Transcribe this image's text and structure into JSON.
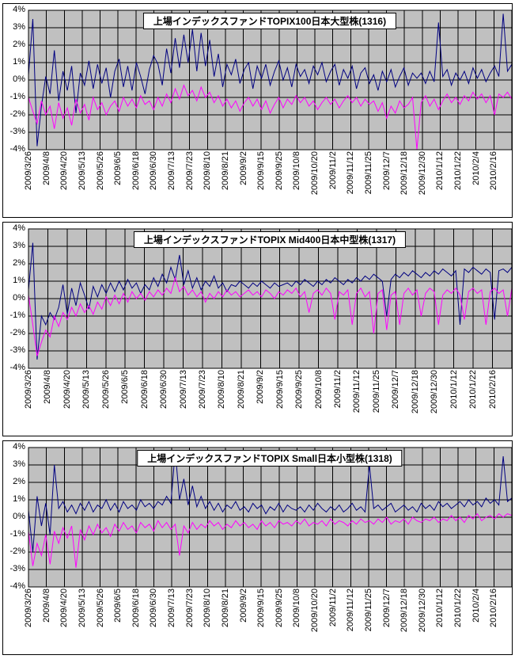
{
  "colors": {
    "plot_bg": "#c0c0c0",
    "grid": "#000000",
    "navy": "#000080",
    "magenta": "#ff00ff"
  },
  "axis": {
    "y_ticks": [
      "4%",
      "3%",
      "2%",
      "1%",
      "0%",
      "-1%",
      "-2%",
      "-3%",
      "-4%"
    ]
  },
  "chart_data": [
    {
      "type": "line",
      "title": "上場インデックスファンドTOPIX100日本大型株(1316)",
      "ylim": [
        -4,
        4
      ],
      "y_unit": "%",
      "grid": true,
      "legend": "none",
      "x_labels": [
        "2009/3/26",
        "2009/4/8",
        "2009/4/20",
        "2009/5/13",
        "2009/5/26",
        "2009/6/5",
        "2009/6/18",
        "2009/6/30",
        "2009/7/13",
        "2009/7/23",
        "2009/8/10",
        "2009/8/21",
        "2009/9/2",
        "2009/9/15",
        "2009/9/25",
        "2009/10/8",
        "2009/10/20",
        "2009/11/2",
        "2009/11/12",
        "2009/11/25",
        "2009/12/7",
        "2009/12/18",
        "2009/12/30",
        "2010/1/12",
        "2010/1/22",
        "2010/2/4",
        "2010/2/16"
      ],
      "series": [
        {
          "name": "navy-series",
          "color": "#000080",
          "values": [
            0.3,
            3.5,
            -3.8,
            -1.5,
            0.2,
            -0.8,
            1.7,
            -1.2,
            0.5,
            -0.6,
            0.8,
            -1.9,
            0.4,
            -0.3,
            1.1,
            -0.5,
            0.9,
            -0.2,
            0.7,
            -1.0,
            0.5,
            1.2,
            -0.4,
            0.8,
            -0.6,
            1.0,
            0.2,
            -0.8,
            0.6,
            1.4,
            0.9,
            -0.3,
            1.8,
            0.4,
            2.4,
            0.7,
            2.6,
            1.0,
            2.9,
            0.5,
            2.7,
            0.8,
            2.3,
            0.2,
            1.5,
            -0.4,
            0.9,
            0.3,
            1.2,
            -0.2,
            0.6,
            1.0,
            -0.5,
            0.8,
            0.1,
            0.9,
            -0.3,
            0.5,
            1.1,
            0.0,
            0.7,
            -0.4,
            0.9,
            0.2,
            0.6,
            -0.2,
            0.8,
            0.3,
            1.0,
            -0.1,
            0.5,
            0.9,
            -0.3,
            0.6,
            0.1,
            0.8,
            -0.5,
            0.4,
            0.7,
            -0.2,
            0.3,
            -0.6,
            0.5,
            -0.1,
            0.6,
            -0.4,
            0.2,
            0.7,
            -0.3,
            0.4,
            0.1,
            0.4,
            -0.2,
            0.5,
            -0.1,
            3.3,
            0.2,
            0.6,
            -0.3,
            0.4,
            0.0,
            0.5,
            -0.2,
            0.7,
            0.1,
            0.6,
            -0.1,
            0.4,
            0.8,
            0.2,
            3.8,
            0.5,
            0.9
          ]
        },
        {
          "name": "magenta-series",
          "color": "#ff00ff",
          "values": [
            -1.0,
            -1.8,
            -2.5,
            -1.2,
            -2.0,
            -1.5,
            -2.8,
            -1.3,
            -2.2,
            -1.6,
            -2.6,
            -1.1,
            -1.9,
            -1.4,
            -2.3,
            -1.0,
            -1.7,
            -1.3,
            -2.0,
            -1.5,
            -1.2,
            -1.8,
            -1.0,
            -1.5,
            -1.1,
            -1.6,
            -0.9,
            -1.4,
            -1.2,
            -1.7,
            -1.0,
            -1.5,
            -0.8,
            -1.3,
            -0.5,
            -1.1,
            -0.3,
            -0.9,
            -0.6,
            -1.2,
            -0.4,
            -1.0,
            -0.7,
            -1.3,
            -0.9,
            -1.5,
            -1.1,
            -1.6,
            -1.2,
            -1.8,
            -1.3,
            -1.0,
            -1.5,
            -1.1,
            -1.7,
            -1.2,
            -1.9,
            -1.4,
            -1.0,
            -1.6,
            -1.1,
            -1.4,
            -0.9,
            -1.3,
            -1.0,
            -1.5,
            -1.2,
            -1.7,
            -1.3,
            -1.0,
            -1.4,
            -1.1,
            -1.6,
            -1.2,
            -0.9,
            -1.3,
            -1.0,
            -1.5,
            -1.1,
            -1.4,
            -1.2,
            -1.8,
            -1.3,
            -2.2,
            -1.5,
            -1.9,
            -1.2,
            -1.6,
            -1.4,
            -1.0,
            -4.0,
            -1.3,
            -0.9,
            -1.5,
            -1.1,
            -1.7,
            -1.2,
            -0.8,
            -1.3,
            -1.0,
            -1.4,
            -0.9,
            -1.2,
            -0.7,
            -1.1,
            -0.8,
            -1.3,
            -0.9,
            -2.0,
            -0.8,
            -1.0,
            -0.7,
            -1.1
          ]
        }
      ]
    },
    {
      "type": "line",
      "title": "上場インデックスファンドTOPIX Mid400日本中型株(1317)",
      "ylim": [
        -4,
        4
      ],
      "y_unit": "%",
      "grid": true,
      "legend": "none",
      "x_labels": [
        "2009/3/26",
        "2009/4/8",
        "2009/4/20",
        "2009/5/13",
        "2009/5/26",
        "2009/6/5",
        "2009/6/18",
        "2009/6/30",
        "2009/7/13",
        "2009/7/23",
        "2009/8/10",
        "2009/8/21",
        "2009/9/2",
        "2009/9/15",
        "2009/9/25",
        "2009/10/8",
        "2009/11/2",
        "2009/11/12",
        "2009/11/25",
        "2009/12/7",
        "2009/12/18",
        "2009/12/30",
        "2010/1/12",
        "2010/1/22",
        "2010/2/16"
      ],
      "series": [
        {
          "name": "navy-series",
          "color": "#000080",
          "values": [
            0.5,
            3.2,
            -3.5,
            -1.0,
            -1.5,
            -0.8,
            -1.2,
            -0.5,
            0.8,
            -0.9,
            0.6,
            -0.4,
            0.9,
            0.2,
            -0.6,
            0.7,
            0.1,
            0.8,
            0.3,
            0.9,
            0.4,
            1.0,
            0.5,
            1.1,
            0.6,
            0.9,
            0.3,
            0.8,
            0.5,
            1.2,
            0.7,
            1.4,
            0.9,
            1.8,
            1.1,
            2.5,
            0.8,
            1.6,
            0.6,
            1.2,
            0.5,
            1.0,
            0.7,
            1.3,
            0.6,
            0.9,
            0.4,
            0.8,
            0.7,
            1.0,
            0.8,
            0.6,
            0.9,
            0.7,
            1.0,
            0.8,
            0.6,
            0.9,
            0.7,
            0.8,
            0.9,
            0.7,
            1.0,
            0.8,
            1.1,
            0.9,
            0.7,
            1.0,
            0.8,
            1.1,
            0.9,
            1.2,
            1.0,
            0.8,
            1.1,
            0.9,
            1.2,
            1.0,
            1.3,
            1.1,
            1.4,
            1.2,
            1.0,
            -1.0,
            1.1,
            1.4,
            1.2,
            1.5,
            1.3,
            1.6,
            1.4,
            1.2,
            1.5,
            1.3,
            1.6,
            1.4,
            1.7,
            1.5,
            1.3,
            1.6,
            -1.5,
            1.7,
            1.5,
            1.8,
            1.6,
            1.4,
            1.7,
            1.5,
            -1.2,
            1.6,
            1.7,
            1.5,
            1.8
          ]
        },
        {
          "name": "magenta-series",
          "color": "#ff00ff",
          "values": [
            0.2,
            -1.5,
            -3.3,
            -2.5,
            -1.8,
            -2.2,
            -1.0,
            -1.6,
            -0.8,
            -1.2,
            -0.5,
            -1.0,
            -0.3,
            -0.8,
            -0.4,
            -0.9,
            -0.2,
            -0.6,
            0.1,
            -0.4,
            0.2,
            -0.3,
            0.3,
            -0.2,
            0.4,
            0.0,
            0.3,
            -0.1,
            0.4,
            0.1,
            0.5,
            0.2,
            0.6,
            0.3,
            1.2,
            0.4,
            0.7,
            0.2,
            0.5,
            0.1,
            0.4,
            -0.2,
            0.3,
            0.0,
            0.4,
            0.1,
            0.5,
            0.2,
            0.4,
            0.1,
            0.3,
            0.5,
            0.2,
            0.4,
            0.1,
            0.5,
            0.3,
            0.0,
            0.4,
            0.2,
            0.5,
            0.3,
            0.6,
            0.1,
            0.4,
            -0.8,
            0.3,
            0.5,
            0.2,
            0.6,
            0.3,
            -1.2,
            0.4,
            0.2,
            0.5,
            -1.5,
            0.3,
            0.6,
            0.1,
            0.4,
            -2.0,
            0.3,
            0.5,
            -1.8,
            0.2,
            0.4,
            -1.5,
            0.3,
            0.6,
            0.2,
            0.5,
            -1.0,
            0.3,
            0.6,
            0.4,
            -1.5,
            0.2,
            0.5,
            0.3,
            0.6,
            0.2,
            -1.2,
            0.4,
            0.6,
            0.3,
            0.5,
            -1.5,
            0.4,
            0.6,
            0.3,
            0.5,
            -1.0,
            0.6
          ]
        }
      ]
    },
    {
      "type": "line",
      "title": "上場インデックスファンドTOPIX Small日本小型株(1318)",
      "ylim": [
        -4,
        4
      ],
      "y_unit": "%",
      "grid": true,
      "legend": "none",
      "x_labels": [
        "2009/3/26",
        "2009/4/8",
        "2009/4/20",
        "2009/5/13",
        "2009/5/26",
        "2009/6/5",
        "2009/6/18",
        "2009/6/30",
        "2009/7/13",
        "2009/7/23",
        "2009/8/10",
        "2009/8/21",
        "2009/9/2",
        "2009/9/15",
        "2009/9/25",
        "2009/10/8",
        "2009/10/20",
        "2009/11/2",
        "2009/11/12",
        "2009/11/25",
        "2009/12/7",
        "2009/12/18",
        "2009/12/30",
        "2010/1/12",
        "2010/1/22",
        "2010/2/4",
        "2010/2/16"
      ],
      "series": [
        {
          "name": "navy-series",
          "color": "#000080",
          "values": [
            0.4,
            -2.0,
            1.2,
            -0.5,
            0.8,
            -1.0,
            3.0,
            0.5,
            0.9,
            0.3,
            0.7,
            0.2,
            0.8,
            0.4,
            0.9,
            0.3,
            0.7,
            0.5,
            1.0,
            0.4,
            0.8,
            0.3,
            0.9,
            0.5,
            0.7,
            0.4,
            1.0,
            0.6,
            0.8,
            0.5,
            0.9,
            0.7,
            1.2,
            0.8,
            3.8,
            1.0,
            2.2,
            0.7,
            1.8,
            0.6,
            1.2,
            0.5,
            0.9,
            0.4,
            0.8,
            0.3,
            0.7,
            0.5,
            0.9,
            0.4,
            0.6,
            0.3,
            0.8,
            0.5,
            0.7,
            0.2,
            0.6,
            0.4,
            0.8,
            0.3,
            0.7,
            0.5,
            0.4,
            0.6,
            0.3,
            0.7,
            0.4,
            0.8,
            0.5,
            0.3,
            0.6,
            0.4,
            0.7,
            0.3,
            0.5,
            0.8,
            0.4,
            0.6,
            0.3,
            3.0,
            0.5,
            0.7,
            0.4,
            0.6,
            0.8,
            0.3,
            0.5,
            0.7,
            0.4,
            0.6,
            0.3,
            0.8,
            0.5,
            0.7,
            0.4,
            0.9,
            0.6,
            0.8,
            0.5,
            0.7,
            0.9,
            0.6,
            1.0,
            0.7,
            0.9,
            0.6,
            1.1,
            0.8,
            1.0,
            0.7,
            3.5,
            0.9,
            1.1
          ]
        },
        {
          "name": "magenta-series",
          "color": "#ff00ff",
          "values": [
            -0.8,
            -2.8,
            -1.5,
            -2.2,
            -1.0,
            -2.7,
            -0.8,
            -1.5,
            -0.6,
            -1.2,
            -0.5,
            -2.9,
            -0.7,
            -1.3,
            -0.5,
            -1.0,
            -0.4,
            -0.9,
            -0.6,
            -1.1,
            -0.4,
            -0.8,
            -0.3,
            -0.7,
            -0.5,
            -0.9,
            -0.3,
            -0.6,
            -0.4,
            -0.8,
            -0.2,
            -0.6,
            -0.3,
            -0.7,
            -0.4,
            -2.2,
            -0.5,
            -0.9,
            -0.3,
            -0.7,
            -0.4,
            -0.6,
            -0.2,
            -0.5,
            -0.3,
            -0.7,
            -0.4,
            -0.6,
            -0.2,
            -0.5,
            -0.3,
            -0.6,
            -0.4,
            -0.7,
            -0.2,
            -0.5,
            -0.3,
            -0.6,
            -0.2,
            -0.4,
            -0.3,
            -0.5,
            -0.2,
            -0.4,
            -0.1,
            -0.5,
            -0.3,
            -0.4,
            -0.2,
            -0.5,
            -0.1,
            -0.4,
            -0.2,
            -0.3,
            -0.5,
            -0.2,
            -0.4,
            -0.1,
            -0.3,
            -0.2,
            -0.4,
            -0.1,
            -0.3,
            0.0,
            -0.4,
            -0.2,
            -0.3,
            -0.1,
            -0.4,
            0.0,
            -0.2,
            -0.3,
            -0.1,
            -0.2,
            0.0,
            -0.3,
            -0.1,
            -0.2,
            0.1,
            -0.2,
            0.0,
            -0.3,
            0.1,
            -0.1,
            0.2,
            -0.2,
            0.0,
            0.1,
            -0.1,
            0.2,
            0.0,
            0.2,
            0.1
          ]
        }
      ]
    }
  ]
}
